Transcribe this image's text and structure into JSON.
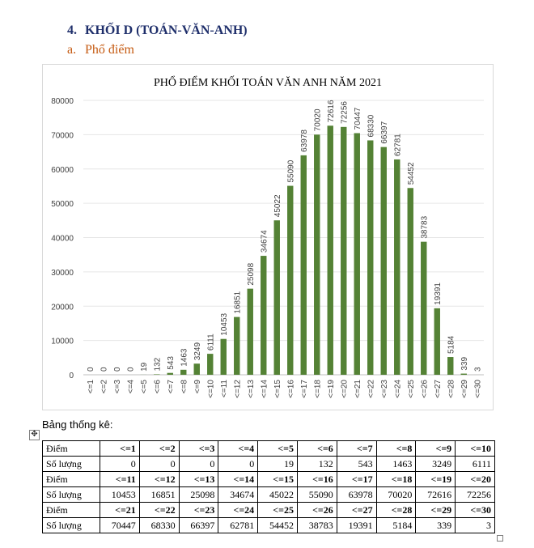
{
  "heading": {
    "number": "4.",
    "text": "KHỐI D (TOÁN-VĂN-ANH)"
  },
  "subheading": {
    "letter": "a.",
    "text": "Phổ điểm"
  },
  "chart_data": {
    "type": "bar",
    "title": "PHỔ ĐIỂM KHỐI TOÁN VĂN ANH NĂM 2021",
    "xlabel": "",
    "ylabel": "",
    "ylim": [
      0,
      80000
    ],
    "yticks": [
      "0",
      "10000",
      "20000",
      "30000",
      "40000",
      "50000",
      "60000",
      "70000",
      "80000"
    ],
    "categories": [
      "<=1",
      "<=2",
      "<=3",
      "<=4",
      "<=5",
      "<=6",
      "<=7",
      "<=8",
      "<=9",
      "<=10",
      "<=11",
      "<=12",
      "<=13",
      "<=14",
      "<=15",
      "<=16",
      "<=17",
      "<=18",
      "<=19",
      "<=20",
      "<=21",
      "<=22",
      "<=23",
      "<=24",
      "<=25",
      "<=26",
      "<=27",
      "<=28",
      "<=29",
      "<=30"
    ],
    "values": [
      0,
      0,
      0,
      0,
      19,
      132,
      543,
      1463,
      3249,
      6111,
      10453,
      16851,
      25098,
      34674,
      45022,
      55090,
      63978,
      70020,
      72616,
      72256,
      70447,
      68330,
      66397,
      62781,
      54452,
      38783,
      19391,
      5184,
      339,
      3
    ],
    "grid": true,
    "legend": "none",
    "bar_color": "#548235"
  },
  "table": {
    "caption": "Bảng thống kê:",
    "move_icon": "✥",
    "rows": [
      {
        "label": "Điểm",
        "header": true,
        "cells": [
          "<=1",
          "<=2",
          "<=3",
          "<=4",
          "<=5",
          "<=6",
          "<=7",
          "<=8",
          "<=9",
          "<=10"
        ]
      },
      {
        "label": "Số lượng",
        "header": false,
        "cells": [
          "0",
          "0",
          "0",
          "0",
          "19",
          "132",
          "543",
          "1463",
          "3249",
          "6111"
        ]
      },
      {
        "label": "Điểm",
        "header": true,
        "cells": [
          "<=11",
          "<=12",
          "<=13",
          "<=14",
          "<=15",
          "<=16",
          "<=17",
          "<=18",
          "<=19",
          "<=20"
        ]
      },
      {
        "label": "Số lượng",
        "header": false,
        "cells": [
          "10453",
          "16851",
          "25098",
          "34674",
          "45022",
          "55090",
          "63978",
          "70020",
          "72616",
          "72256"
        ]
      },
      {
        "label": "Điểm",
        "header": true,
        "cells": [
          "<=21",
          "<=22",
          "<=23",
          "<=24",
          "<=25",
          "<=26",
          "<=27",
          "<=28",
          "<=29",
          "<=30"
        ]
      },
      {
        "label": "Số lượng",
        "header": false,
        "cells": [
          "70447",
          "68330",
          "66397",
          "62781",
          "54452",
          "38783",
          "19391",
          "5184",
          "339",
          "3"
        ]
      }
    ]
  }
}
